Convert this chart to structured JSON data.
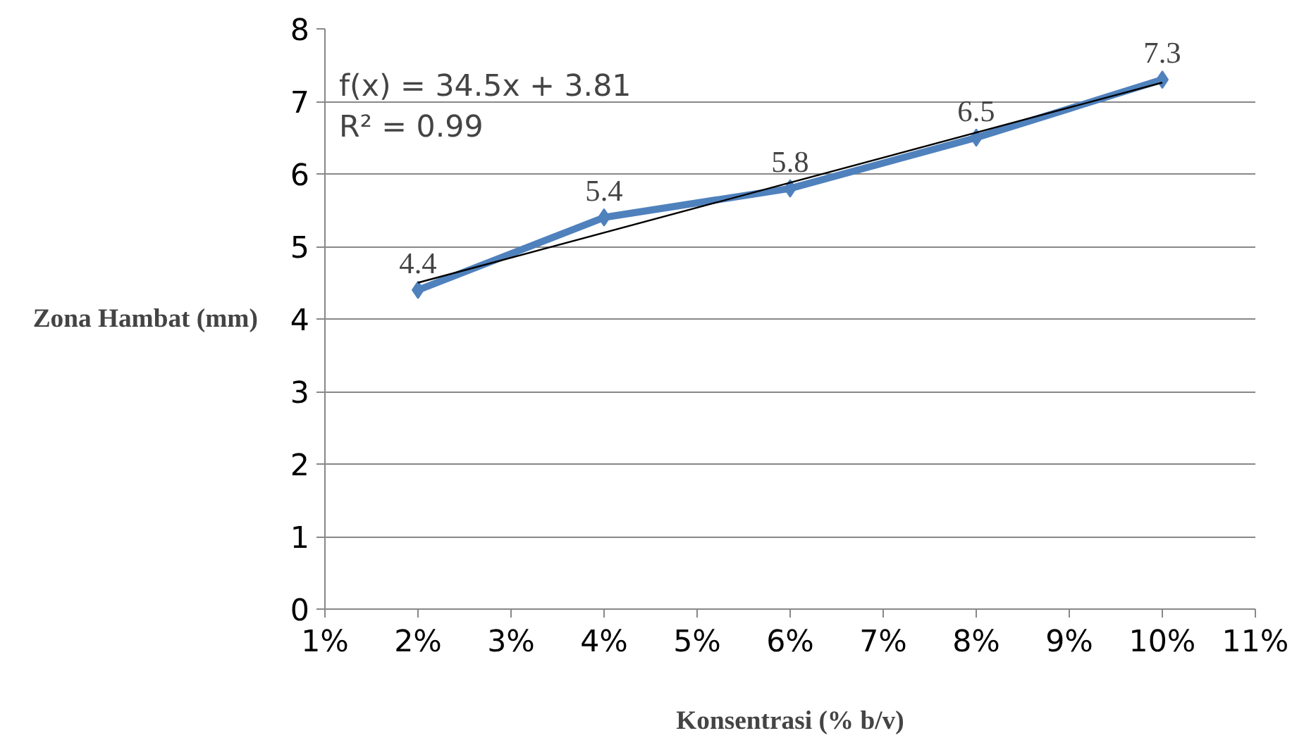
{
  "chart_data": {
    "type": "line",
    "xlabel": "Konsentrasi (% b/v)",
    "ylabel": "Zona Hambat (mm)",
    "x": [
      0.02,
      0.04,
      0.06,
      0.08,
      0.1
    ],
    "series": [
      {
        "color": "#4f81bd",
        "values": [
          4.4,
          5.4,
          5.8,
          6.5,
          7.3
        ],
        "marker": "diamond",
        "data_labels": true
      },
      {
        "type": "line",
        "color": "#000000",
        "x": [
          0.02,
          0.1
        ],
        "values": [
          4.5,
          7.26
        ],
        "marker": "none"
      }
    ],
    "annotations": [
      "f(x) = 34.5x + 3.81",
      "R² = 0.99"
    ],
    "xlim": [
      0.01,
      0.11
    ],
    "xticks": [
      {
        "value": 0.01,
        "label": "1%"
      },
      {
        "value": 0.02,
        "label": "2%"
      },
      {
        "value": 0.03,
        "label": "3%"
      },
      {
        "value": 0.04,
        "label": "4%"
      },
      {
        "value": 0.05,
        "label": "5%"
      },
      {
        "value": 0.06,
        "label": "6%"
      },
      {
        "value": 0.07,
        "label": "7%"
      },
      {
        "value": 0.08,
        "label": "8%"
      },
      {
        "value": 0.09,
        "label": "9%"
      },
      {
        "value": 0.1,
        "label": "10%"
      },
      {
        "value": 0.11,
        "label": "11%"
      }
    ],
    "ylim": [
      0,
      8
    ],
    "yticks": [
      0,
      1,
      2,
      3,
      4,
      5,
      6,
      7,
      8
    ],
    "grid": "y"
  }
}
